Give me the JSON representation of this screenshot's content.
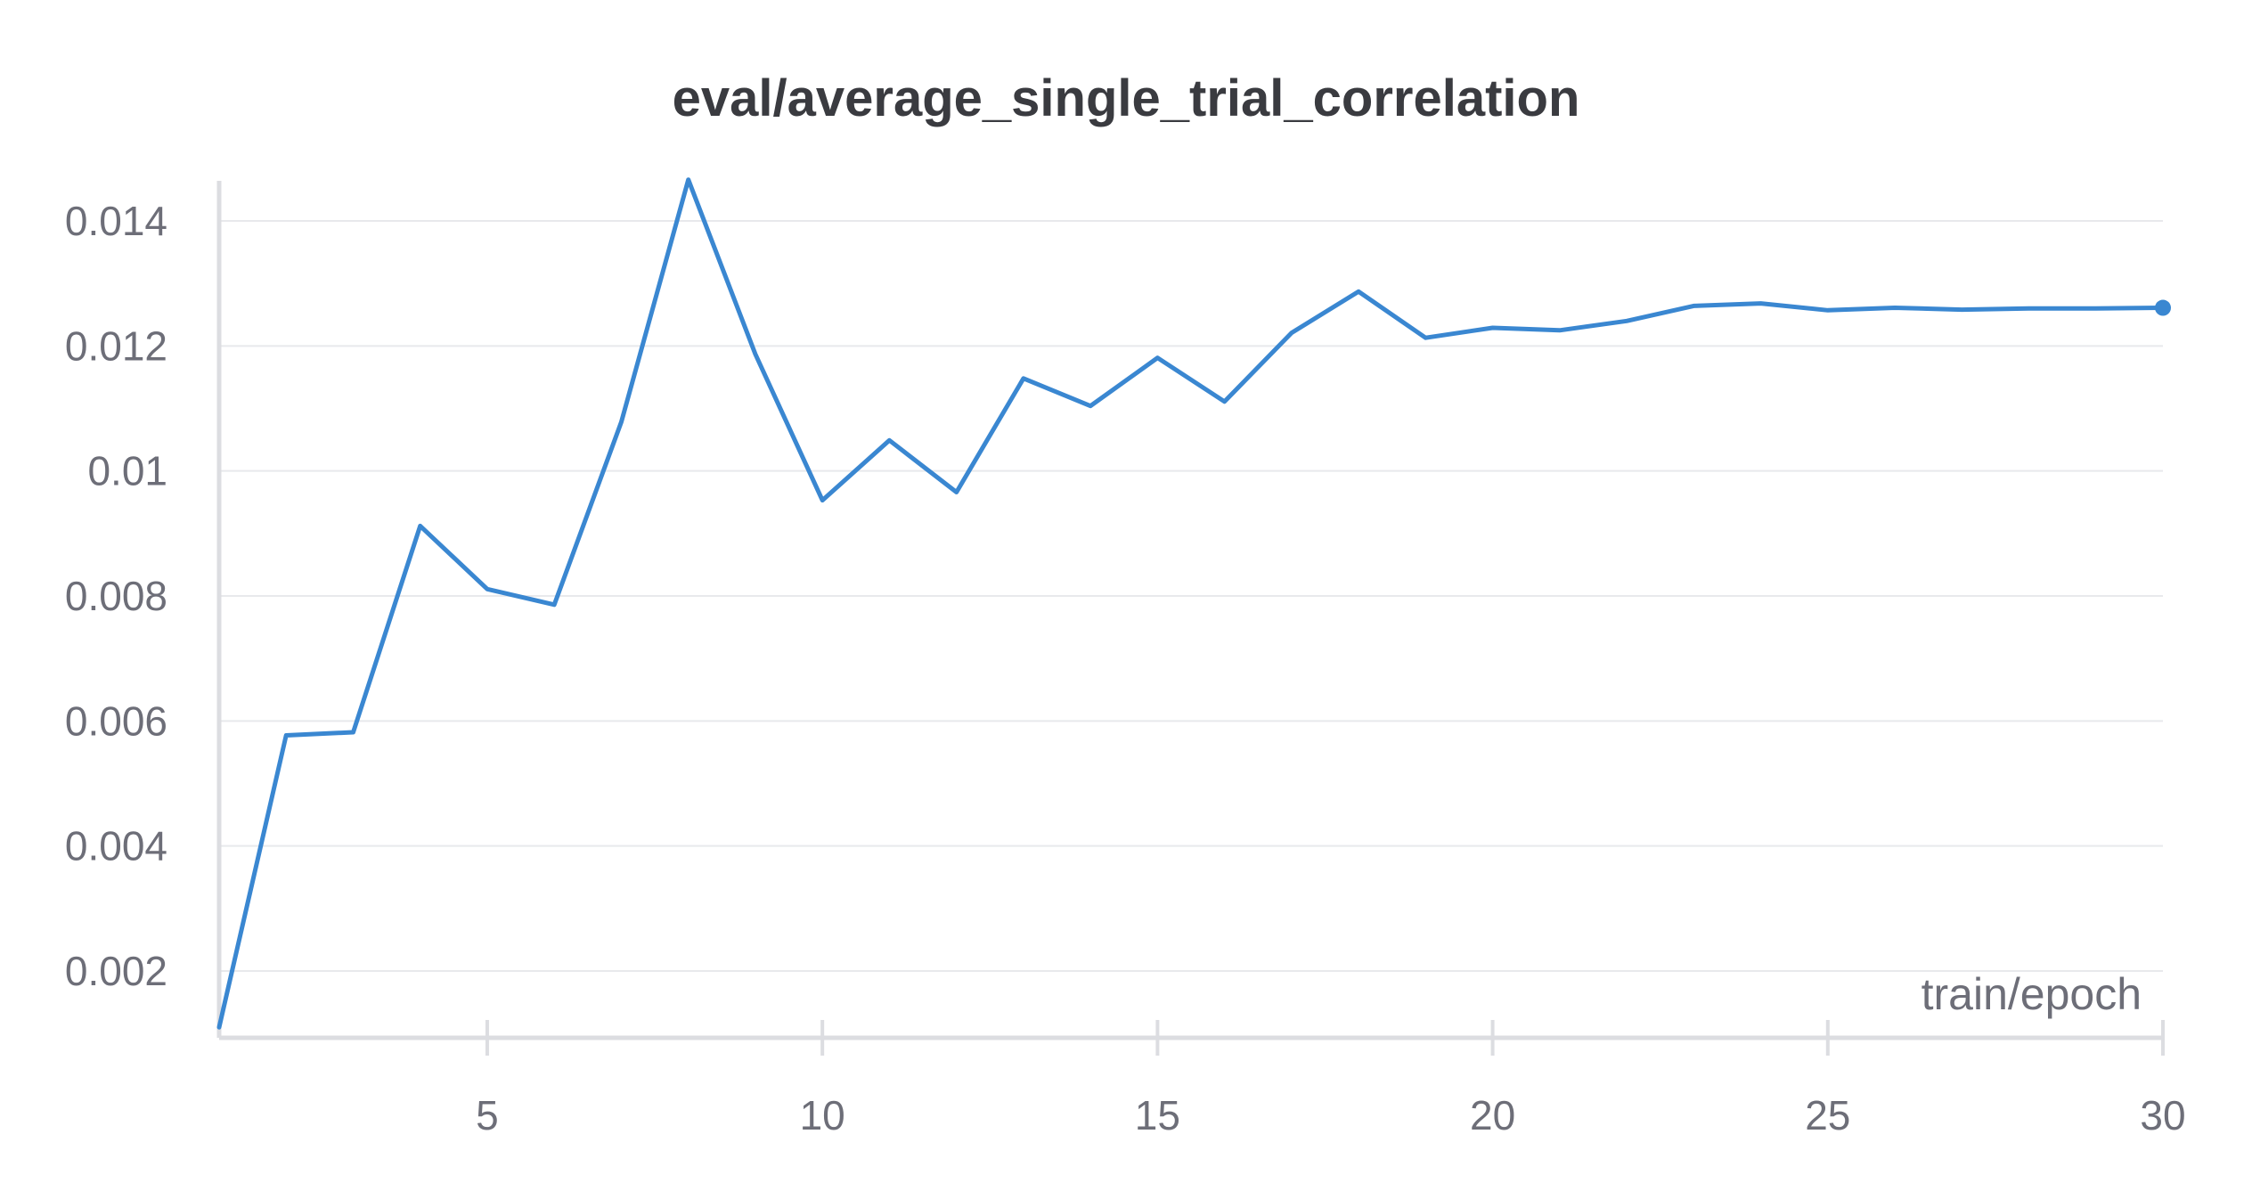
{
  "chart_data": {
    "type": "line",
    "title": "eval/average_single_trial_correlation",
    "xlabel": "train/epoch",
    "ylabel": "",
    "xlim": [
      1,
      30
    ],
    "ylim": [
      0.001,
      0.0147
    ],
    "x_ticks": [
      5,
      10,
      15,
      20,
      25,
      30
    ],
    "x_tick_labels": [
      "5",
      "10",
      "15",
      "20",
      "25",
      "30"
    ],
    "y_ticks": [
      0.002,
      0.004,
      0.006,
      0.008,
      0.01,
      0.012,
      0.014
    ],
    "y_tick_labels": [
      "0.002",
      "0.004",
      "0.006",
      "0.008",
      "0.01",
      "0.012",
      "0.014"
    ],
    "grid": true,
    "legend": "none",
    "colors": {
      "series": "#3a87d1"
    },
    "series": [
      {
        "x": [
          1,
          2,
          3,
          4,
          5,
          6,
          7,
          8,
          9,
          10,
          11,
          12,
          13,
          14,
          15,
          16,
          17,
          18,
          19,
          20,
          21,
          22,
          23,
          24,
          25,
          26,
          27,
          28,
          29,
          30
        ],
        "values": [
          0.0011,
          0.00577,
          0.00582,
          0.00912,
          0.00811,
          0.00786,
          0.01078,
          0.01466,
          0.01187,
          0.00953,
          0.01049,
          0.00966,
          0.01148,
          0.01104,
          0.01181,
          0.01111,
          0.01221,
          0.01287,
          0.01213,
          0.01229,
          0.01225,
          0.0124,
          0.01264,
          0.01268,
          0.01257,
          0.01261,
          0.01258,
          0.0126,
          0.0126,
          0.01261
        ]
      }
    ]
  }
}
